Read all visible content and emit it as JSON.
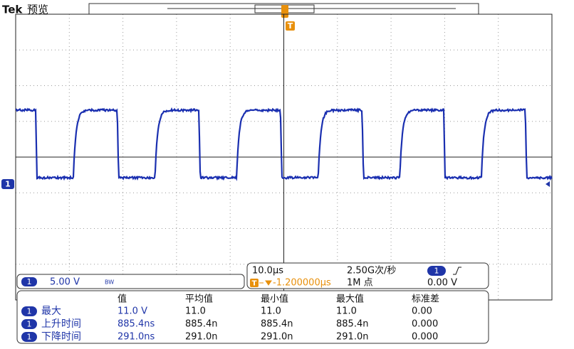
{
  "header": {
    "brand": "Tek",
    "mode": "预览",
    "trigger_marker": "T"
  },
  "channel": {
    "marker": "1",
    "scale": "5.00 V",
    "bandwidth": "BW"
  },
  "timebase": {
    "scale": "10.0µs",
    "sample_rate": "2.50G次/秒",
    "trigger_channel": "1",
    "trigger_level": "0.00 V",
    "trigger_marker": "T",
    "position": "-1.200000µs",
    "record_length": "1M 点"
  },
  "measurements": {
    "headers": [
      "值",
      "平均值",
      "最小值",
      "最大值",
      "标准差"
    ],
    "rows": [
      {
        "channel": "1",
        "name": "最大",
        "cells": [
          "11.0 V",
          "11.0",
          "11.0",
          "11.0",
          "0.00"
        ]
      },
      {
        "channel": "1",
        "name": "上升时间",
        "cells": [
          "885.4ns",
          "885.4n",
          "885.4n",
          "885.4n",
          "0.000"
        ]
      },
      {
        "channel": "1",
        "name": "下降时间",
        "cells": [
          "291.0ns",
          "291.0n",
          "291.0n",
          "291.0n",
          "0.000"
        ]
      }
    ]
  }
}
